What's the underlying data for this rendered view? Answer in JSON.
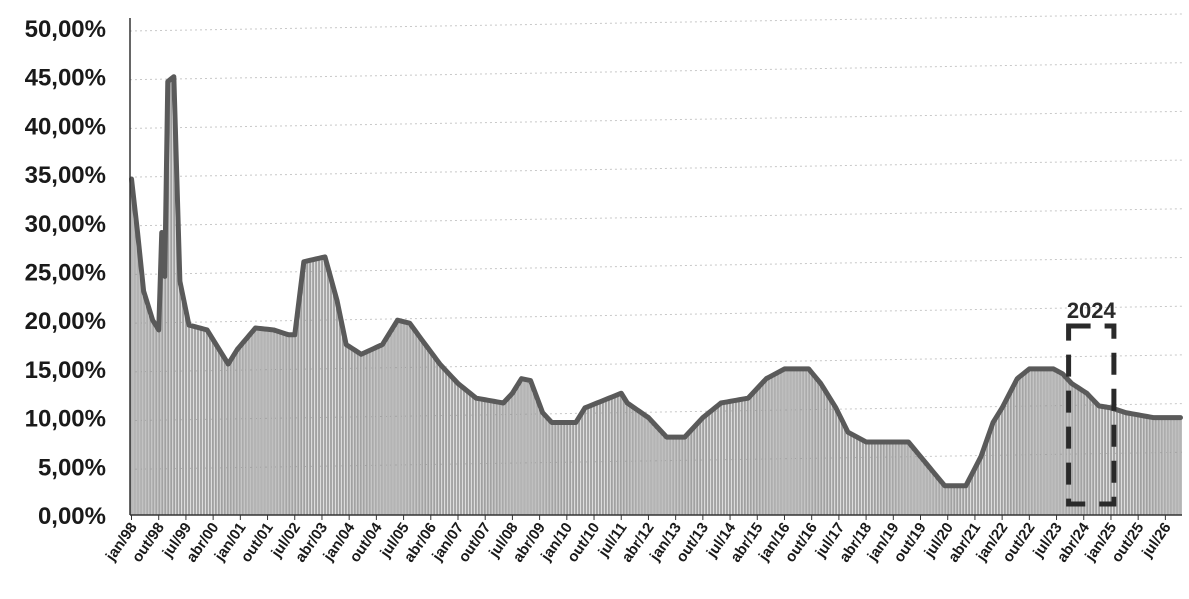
{
  "chart_data": {
    "type": "bar",
    "title": "",
    "xlabel": "",
    "ylabel": "",
    "ylim": [
      0,
      50
    ],
    "grid": true,
    "y_ticks": [
      "0,00%",
      "5,00%",
      "10,00%",
      "15,00%",
      "20,00%",
      "25,00%",
      "30,00%",
      "35,00%",
      "40,00%",
      "45,00%",
      "50,00%"
    ],
    "x_tick_labels": [
      "jan/98",
      "out/98",
      "jul/99",
      "abr/00",
      "jan/01",
      "out/01",
      "jul/02",
      "abr/03",
      "jan/04",
      "out/04",
      "jul/05",
      "abr/06",
      "jan/07",
      "out/07",
      "jul/08",
      "abr/09",
      "jan/10",
      "out/10",
      "jul/11",
      "abr/12",
      "jan/13",
      "out/13",
      "jul/14",
      "abr/15",
      "jan/16",
      "out/16",
      "jul/17",
      "abr/18",
      "jan/19",
      "out/19",
      "jul/20",
      "abr/21",
      "jan/22",
      "out/22",
      "jul/23",
      "abr/24",
      "jan/25",
      "out/25",
      "jul/26"
    ],
    "x_start": "1998-01",
    "x_end": "2026-12",
    "series": [
      {
        "points": [
          [
            "1998-01",
            34.5
          ],
          [
            "1998-03",
            29.0
          ],
          [
            "1998-05",
            23.0
          ],
          [
            "1998-08",
            20.0
          ],
          [
            "1998-10",
            19.0
          ],
          [
            "1998-11",
            29.0
          ],
          [
            "1998-12",
            24.5
          ],
          [
            "1999-01",
            44.5
          ],
          [
            "1999-03",
            45.0
          ],
          [
            "1999-05",
            24.0
          ],
          [
            "1999-08",
            19.5
          ],
          [
            "2000-02",
            19.0
          ],
          [
            "2000-06",
            17.0
          ],
          [
            "2000-09",
            15.5
          ],
          [
            "2000-12",
            17.0
          ],
          [
            "2001-06",
            19.2
          ],
          [
            "2001-12",
            19.0
          ],
          [
            "2002-05",
            18.5
          ],
          [
            "2002-07",
            18.5
          ],
          [
            "2002-10",
            26.0
          ],
          [
            "2003-05",
            26.5
          ],
          [
            "2003-09",
            22.0
          ],
          [
            "2003-12",
            17.5
          ],
          [
            "2004-05",
            16.5
          ],
          [
            "2004-12",
            17.5
          ],
          [
            "2005-05",
            20.0
          ],
          [
            "2005-09",
            19.7
          ],
          [
            "2006-01",
            18.0
          ],
          [
            "2006-07",
            15.5
          ],
          [
            "2007-01",
            13.5
          ],
          [
            "2007-07",
            12.0
          ],
          [
            "2008-04",
            11.5
          ],
          [
            "2008-07",
            12.5
          ],
          [
            "2008-10",
            14.0
          ],
          [
            "2009-01",
            13.8
          ],
          [
            "2009-05",
            10.5
          ],
          [
            "2009-08",
            9.5
          ],
          [
            "2010-04",
            9.5
          ],
          [
            "2010-07",
            11.0
          ],
          [
            "2011-03",
            12.0
          ],
          [
            "2011-07",
            12.5
          ],
          [
            "2011-09",
            11.5
          ],
          [
            "2012-04",
            10.0
          ],
          [
            "2012-10",
            8.0
          ],
          [
            "2013-04",
            8.0
          ],
          [
            "2013-10",
            10.0
          ],
          [
            "2014-04",
            11.5
          ],
          [
            "2015-01",
            12.0
          ],
          [
            "2015-07",
            14.0
          ],
          [
            "2016-01",
            15.0
          ],
          [
            "2016-09",
            15.0
          ],
          [
            "2017-01",
            13.5
          ],
          [
            "2017-06",
            11.0
          ],
          [
            "2017-10",
            8.5
          ],
          [
            "2018-04",
            7.5
          ],
          [
            "2019-06",
            7.5
          ],
          [
            "2019-10",
            6.0
          ],
          [
            "2020-02",
            4.5
          ],
          [
            "2020-06",
            3.0
          ],
          [
            "2021-01",
            3.0
          ],
          [
            "2021-06",
            6.0
          ],
          [
            "2021-10",
            9.5
          ],
          [
            "2022-01",
            11.0
          ],
          [
            "2022-06",
            14.0
          ],
          [
            "2022-10",
            15.0
          ],
          [
            "2023-06",
            15.0
          ],
          [
            "2023-09",
            14.5
          ],
          [
            "2023-12",
            13.5
          ],
          [
            "2024-05",
            12.5
          ],
          [
            "2024-09",
            11.2
          ],
          [
            "2025-01",
            11.0
          ],
          [
            "2025-06",
            10.5
          ],
          [
            "2026-03",
            10.0
          ],
          [
            "2026-12",
            10.0
          ]
        ]
      }
    ],
    "annotations": [
      {
        "text": "2024",
        "from": "2024-01",
        "to": "2024-12"
      }
    ]
  },
  "colors": {
    "bar": "#b4b4b4",
    "bar_stroke": "#7a7a7a",
    "outline": "#5a5a5a",
    "gridline": "#c8c8c8",
    "axis": "#333333",
    "text": "#1a1a1a",
    "annotation_box": "#2a2a2a"
  }
}
